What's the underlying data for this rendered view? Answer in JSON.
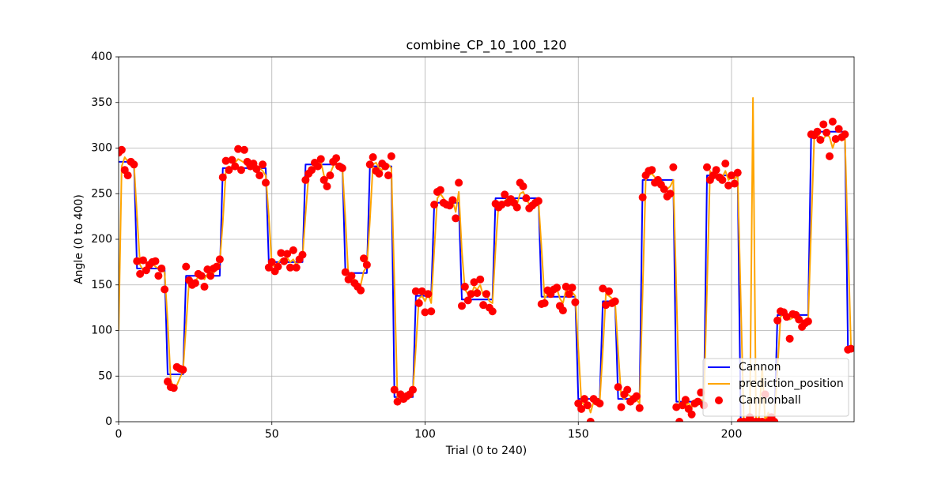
{
  "chart_data": {
    "type": "line",
    "title": "combine_CP_10_100_120",
    "x_label": "Trial (0 to 240)",
    "y_label": "Angle (0 to 400)",
    "xlim": [
      0,
      240
    ],
    "ylim": [
      0,
      400
    ],
    "xticks": [
      0,
      50,
      100,
      150,
      200
    ],
    "yticks": [
      0,
      50,
      100,
      150,
      200,
      250,
      300,
      350,
      400
    ],
    "grid": true,
    "legend": "lower right",
    "x": [
      0,
      1,
      2,
      3,
      4,
      5,
      6,
      7,
      8,
      9,
      10,
      11,
      12,
      13,
      14,
      15,
      16,
      17,
      18,
      19,
      20,
      21,
      22,
      23,
      24,
      25,
      26,
      27,
      28,
      29,
      30,
      31,
      32,
      33,
      34,
      35,
      36,
      37,
      38,
      39,
      40,
      41,
      42,
      43,
      44,
      45,
      46,
      47,
      48,
      49,
      50,
      51,
      52,
      53,
      54,
      55,
      56,
      57,
      58,
      59,
      60,
      61,
      62,
      63,
      64,
      65,
      66,
      67,
      68,
      69,
      70,
      71,
      72,
      73,
      74,
      75,
      76,
      77,
      78,
      79,
      80,
      81,
      82,
      83,
      84,
      85,
      86,
      87,
      88,
      89,
      90,
      91,
      92,
      93,
      94,
      95,
      96,
      97,
      98,
      99,
      100,
      101,
      102,
      103,
      104,
      105,
      106,
      107,
      108,
      109,
      110,
      111,
      112,
      113,
      114,
      115,
      116,
      117,
      118,
      119,
      120,
      121,
      122,
      123,
      124,
      125,
      126,
      127,
      128,
      129,
      130,
      131,
      132,
      133,
      134,
      135,
      136,
      137,
      138,
      139,
      140,
      141,
      142,
      143,
      144,
      145,
      146,
      147,
      148,
      149,
      150,
      151,
      152,
      153,
      154,
      155,
      156,
      157,
      158,
      159,
      160,
      161,
      162,
      163,
      164,
      165,
      166,
      167,
      168,
      169,
      170,
      171,
      172,
      173,
      174,
      175,
      176,
      177,
      178,
      179,
      180,
      181,
      182,
      183,
      184,
      185,
      186,
      187,
      188,
      189,
      190,
      191,
      192,
      193,
      194,
      195,
      196,
      197,
      198,
      199,
      200,
      201,
      202,
      203,
      204,
      205,
      206,
      207,
      208,
      209,
      210,
      211,
      212,
      213,
      214,
      215,
      216,
      217,
      218,
      219,
      220,
      221,
      222,
      223,
      224,
      225,
      226,
      227,
      228,
      229,
      230,
      231,
      232,
      233,
      234,
      235,
      236,
      237,
      238,
      239
    ],
    "series": [
      {
        "name": "Cannon",
        "style": "line",
        "color": "#0000ff",
        "values": [
          285,
          285,
          285,
          285,
          285,
          285,
          168,
          168,
          168,
          168,
          168,
          168,
          168,
          168,
          168,
          168,
          52,
          52,
          52,
          52,
          52,
          52,
          160,
          160,
          160,
          160,
          160,
          160,
          160,
          160,
          160,
          160,
          160,
          160,
          278,
          278,
          278,
          278,
          278,
          278,
          278,
          278,
          278,
          278,
          278,
          278,
          278,
          278,
          278,
          175,
          175,
          175,
          175,
          175,
          175,
          175,
          175,
          175,
          175,
          175,
          175,
          282,
          282,
          282,
          282,
          282,
          282,
          282,
          282,
          282,
          282,
          282,
          282,
          282,
          163,
          163,
          163,
          163,
          163,
          163,
          163,
          163,
          280,
          280,
          280,
          280,
          280,
          280,
          280,
          280,
          27,
          27,
          27,
          27,
          27,
          27,
          27,
          138,
          138,
          138,
          138,
          138,
          138,
          240,
          240,
          240,
          240,
          240,
          240,
          240,
          240,
          240,
          134,
          134,
          134,
          134,
          134,
          134,
          134,
          134,
          134,
          134,
          134,
          245,
          245,
          245,
          245,
          245,
          245,
          245,
          245,
          245,
          245,
          245,
          245,
          245,
          245,
          245,
          137,
          137,
          137,
          137,
          137,
          137,
          137,
          137,
          137,
          137,
          137,
          137,
          25,
          25,
          25,
          25,
          25,
          25,
          25,
          25,
          132,
          132,
          132,
          132,
          132,
          25,
          25,
          25,
          25,
          25,
          25,
          25,
          25,
          265,
          265,
          265,
          265,
          265,
          265,
          265,
          265,
          265,
          265,
          265,
          22,
          22,
          22,
          22,
          22,
          22,
          22,
          22,
          22,
          22,
          270,
          270,
          270,
          270,
          270,
          270,
          270,
          270,
          270,
          270,
          270,
          0,
          0,
          0,
          0,
          0,
          0,
          0,
          0,
          0,
          0,
          0,
          0,
          117,
          117,
          117,
          117,
          117,
          117,
          117,
          117,
          117,
          117,
          117,
          318,
          318,
          318,
          318,
          318,
          318,
          318,
          318,
          318,
          318,
          318,
          318,
          79,
          79
        ]
      },
      {
        "name": "prediction_position",
        "style": "line",
        "color": "#ffa500",
        "values": [
          100,
          280,
          290,
          285,
          288,
          283,
          226,
          172,
          166,
          168,
          172,
          174,
          170,
          168,
          166,
          164,
          110,
          45,
          38,
          40,
          48,
          55,
          105,
          155,
          152,
          155,
          158,
          160,
          156,
          162,
          165,
          163,
          168,
          175,
          219,
          275,
          280,
          278,
          284,
          288,
          286,
          284,
          280,
          282,
          284,
          280,
          278,
          275,
          270,
          226,
          172,
          170,
          174,
          178,
          176,
          180,
          175,
          178,
          172,
          176,
          180,
          228,
          270,
          275,
          280,
          283,
          285,
          270,
          265,
          272,
          280,
          284,
          282,
          280,
          222,
          158,
          160,
          156,
          152,
          150,
          165,
          170,
          221,
          282,
          284,
          278,
          276,
          280,
          282,
          278,
          150,
          25,
          24,
          25,
          26,
          28,
          32,
          82,
          135,
          138,
          132,
          140,
          130,
          189,
          245,
          250,
          245,
          240,
          238,
          242,
          230,
          252,
          187,
          145,
          140,
          138,
          148,
          145,
          150,
          138,
          140,
          132,
          130,
          190,
          240,
          238,
          242,
          245,
          242,
          240,
          238,
          250,
          252,
          245,
          238,
          238,
          240,
          242,
          190,
          135,
          140,
          142,
          145,
          146,
          135,
          130,
          145,
          140,
          142,
          138,
          81,
          22,
          18,
          20,
          10,
          22,
          24,
          22,
          78,
          140,
          138,
          135,
          132,
          78,
          28,
          25,
          30,
          28,
          22,
          24,
          20,
          143,
          265,
          270,
          272,
          268,
          265,
          262,
          258,
          255,
          258,
          265,
          144,
          20,
          15,
          18,
          20,
          16,
          18,
          20,
          24,
          22,
          146,
          275,
          268,
          272,
          270,
          268,
          275,
          265,
          268,
          266,
          270,
          135,
          2,
          0,
          10,
          355,
          0,
          5,
          60,
          0,
          10,
          0,
          2,
          58,
          115,
          118,
          116,
          112,
          114,
          116,
          115,
          110,
          108,
          110,
          214,
          312,
          315,
          312,
          310,
          315,
          312,
          300,
          310,
          312,
          308,
          312,
          195,
          80
        ]
      },
      {
        "name": "Cannonball",
        "style": "scatter",
        "color": "#ff0000",
        "values": [
          295,
          298,
          276,
          270,
          285,
          282,
          176,
          162,
          177,
          166,
          172,
          175,
          176,
          160,
          168,
          145,
          44,
          38,
          37,
          60,
          58,
          57,
          170,
          155,
          150,
          152,
          162,
          160,
          148,
          167,
          160,
          168,
          170,
          178,
          268,
          286,
          276,
          287,
          280,
          299,
          276,
          298,
          285,
          280,
          283,
          277,
          270,
          282,
          262,
          169,
          175,
          165,
          170,
          185,
          176,
          184,
          169,
          188,
          169,
          178,
          183,
          265,
          272,
          276,
          284,
          280,
          288,
          265,
          258,
          270,
          285,
          289,
          280,
          278,
          164,
          156,
          160,
          152,
          148,
          144,
          179,
          172,
          282,
          290,
          275,
          272,
          283,
          280,
          270,
          291,
          35,
          22,
          30,
          25,
          28,
          30,
          35,
          143,
          130,
          143,
          120,
          140,
          121,
          238,
          252,
          254,
          240,
          238,
          237,
          243,
          223,
          262,
          127,
          148,
          133,
          140,
          153,
          141,
          156,
          128,
          140,
          125,
          121,
          239,
          235,
          238,
          249,
          240,
          244,
          240,
          235,
          262,
          258,
          245,
          234,
          237,
          240,
          242,
          129,
          130,
          144,
          140,
          145,
          147,
          127,
          122,
          148,
          140,
          147,
          131,
          20,
          14,
          25,
          18,
          0,
          25,
          22,
          20,
          146,
          128,
          143,
          130,
          132,
          38,
          16,
          30,
          35,
          22,
          25,
          28,
          15,
          246,
          270,
          275,
          276,
          262,
          265,
          260,
          255,
          247,
          250,
          279,
          16,
          0,
          18,
          24,
          14,
          8,
          20,
          22,
          32,
          18,
          279,
          265,
          270,
          276,
          268,
          265,
          283,
          259,
          270,
          261,
          273,
          0,
          0,
          0,
          5,
          0,
          0,
          0,
          0,
          30,
          0,
          5,
          0,
          111,
          121,
          120,
          115,
          91,
          118,
          117,
          112,
          104,
          108,
          110,
          315,
          314,
          318,
          309,
          326,
          317,
          291,
          329,
          310,
          321,
          312,
          315,
          79,
          80
        ]
      }
    ]
  }
}
